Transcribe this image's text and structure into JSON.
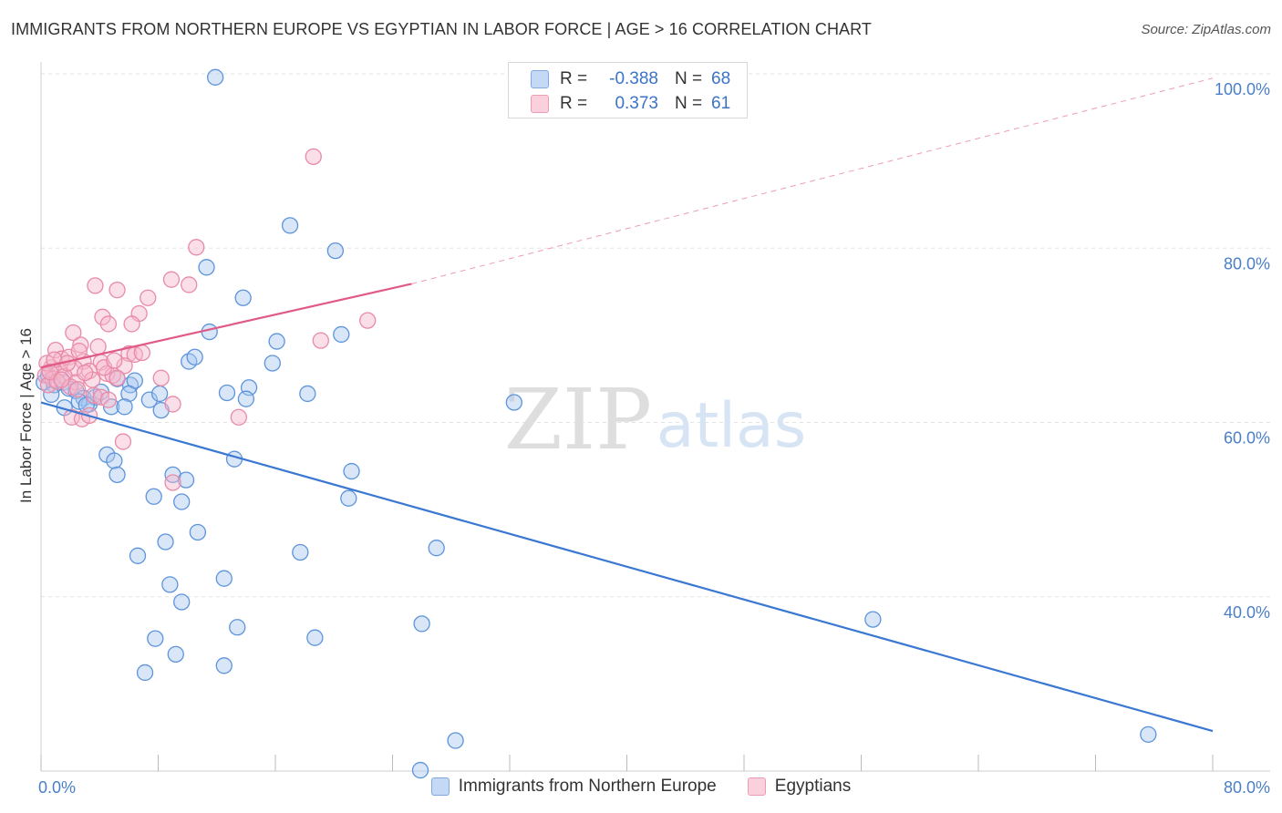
{
  "title": "IMMIGRANTS FROM NORTHERN EUROPE VS EGYPTIAN IN LABOR FORCE | AGE > 16 CORRELATION CHART",
  "source": "Source: ZipAtlas.com",
  "watermark": {
    "zip": "ZIP",
    "atlas": "atlas"
  },
  "stats": [
    {
      "r_label": "R =",
      "r_value": "-0.388",
      "n_label": "N =",
      "n_value": "68",
      "color": "#9cc0ee"
    },
    {
      "r_label": "R =",
      "r_value": "0.373",
      "n_label": "N =",
      "n_value": "61",
      "color": "#f5a8c0"
    }
  ],
  "colors": {
    "blue_fill": "#a9c8f0",
    "blue_stroke": "#5d94dc",
    "blue_line": "#3a78d2",
    "pink_fill": "#f7b8cc",
    "pink_stroke": "#e88aa8",
    "pink_line": "#e05a85",
    "grid": "#e3e3e3",
    "tick_text": "#4a7fc8"
  },
  "chart_data": {
    "type": "scatter",
    "title": "IMMIGRANTS FROM NORTHERN EUROPE VS EGYPTIAN IN LABOR FORCE | AGE > 16 CORRELATION CHART",
    "xlabel": "",
    "ylabel": "In Labor Force | Age > 16",
    "xlim": [
      0,
      80
    ],
    "ylim": [
      20,
      100
    ],
    "x_tick_labels": [
      {
        "value": 0,
        "label": "0.0%"
      },
      {
        "value": 80,
        "label": "80.0%"
      }
    ],
    "y_tick_labels": [
      {
        "value": 40,
        "label": "40.0%"
      },
      {
        "value": 60,
        "label": "60.0%"
      },
      {
        "value": 80,
        "label": "80.0%"
      },
      {
        "value": 100,
        "label": "100.0%"
      }
    ],
    "grid": true,
    "legend": "bottom-center",
    "series": [
      {
        "name": "Immigrants from Northern Europe",
        "color": "#a9c8f0",
        "trend": {
          "x0": 0,
          "y0": 62.3,
          "x1": 80,
          "y1": 24.6
        },
        "points": [
          [
            11.9,
            99.6
          ],
          [
            17.0,
            82.6
          ],
          [
            20.1,
            79.7
          ],
          [
            11.3,
            77.8
          ],
          [
            13.8,
            74.3
          ],
          [
            11.5,
            70.4
          ],
          [
            20.5,
            70.1
          ],
          [
            16.1,
            69.3
          ],
          [
            15.8,
            66.8
          ],
          [
            10.1,
            67.0
          ],
          [
            10.5,
            67.5
          ],
          [
            0.2,
            64.6
          ],
          [
            0.5,
            65.4
          ],
          [
            0.9,
            64.3
          ],
          [
            1.5,
            64.6
          ],
          [
            1.9,
            63.9
          ],
          [
            2.4,
            63.6
          ],
          [
            2.9,
            62.8
          ],
          [
            3.3,
            62.1
          ],
          [
            3.7,
            62.9
          ],
          [
            4.1,
            63.5
          ],
          [
            4.8,
            61.8
          ],
          [
            5.2,
            65.0
          ],
          [
            6.1,
            64.3
          ],
          [
            6.4,
            64.8
          ],
          [
            6.0,
            63.3
          ],
          [
            7.4,
            62.6
          ],
          [
            8.1,
            63.3
          ],
          [
            8.2,
            61.4
          ],
          [
            12.7,
            63.4
          ],
          [
            14.2,
            64.0
          ],
          [
            14.0,
            62.7
          ],
          [
            18.2,
            63.3
          ],
          [
            1.6,
            61.7
          ],
          [
            2.6,
            62.4
          ],
          [
            4.5,
            56.3
          ],
          [
            5.0,
            55.6
          ],
          [
            5.2,
            54.0
          ],
          [
            13.2,
            55.8
          ],
          [
            21.2,
            54.4
          ],
          [
            7.7,
            51.5
          ],
          [
            9.0,
            54.0
          ],
          [
            9.9,
            53.4
          ],
          [
            9.6,
            50.9
          ],
          [
            21.0,
            51.3
          ],
          [
            6.6,
            44.7
          ],
          [
            8.5,
            46.3
          ],
          [
            10.7,
            47.4
          ],
          [
            17.7,
            45.1
          ],
          [
            27.0,
            45.6
          ],
          [
            8.8,
            41.4
          ],
          [
            9.6,
            39.4
          ],
          [
            12.5,
            42.1
          ],
          [
            7.8,
            35.2
          ],
          [
            9.2,
            33.4
          ],
          [
            13.4,
            36.5
          ],
          [
            18.7,
            35.3
          ],
          [
            26.0,
            36.9
          ],
          [
            7.1,
            31.3
          ],
          [
            12.5,
            32.1
          ],
          [
            28.3,
            23.5
          ],
          [
            25.9,
            20.1
          ],
          [
            32.3,
            62.3
          ],
          [
            56.8,
            37.4
          ],
          [
            75.6,
            24.2
          ],
          [
            0.7,
            63.2
          ],
          [
            3.1,
            62.0
          ],
          [
            5.7,
            61.8
          ]
        ]
      },
      {
        "name": "Egyptians",
        "color": "#f7b8cc",
        "trend": {
          "x0": 0,
          "y0": 66.3,
          "x1": 25.3,
          "y1": 75.9,
          "extended_x1": 80,
          "extended_y1": 99.5
        },
        "points": [
          [
            18.6,
            90.5
          ],
          [
            10.6,
            80.1
          ],
          [
            8.9,
            76.4
          ],
          [
            10.1,
            75.8
          ],
          [
            3.7,
            75.7
          ],
          [
            5.2,
            75.2
          ],
          [
            7.3,
            74.3
          ],
          [
            6.7,
            72.5
          ],
          [
            4.2,
            72.1
          ],
          [
            4.6,
            71.3
          ],
          [
            6.2,
            71.3
          ],
          [
            22.3,
            71.7
          ],
          [
            2.2,
            70.3
          ],
          [
            19.1,
            69.4
          ],
          [
            2.7,
            68.9
          ],
          [
            1.0,
            68.3
          ],
          [
            3.9,
            68.7
          ],
          [
            6.0,
            67.9
          ],
          [
            6.4,
            67.8
          ],
          [
            1.4,
            67.3
          ],
          [
            1.9,
            67.5
          ],
          [
            2.9,
            67.0
          ],
          [
            4.1,
            66.9
          ],
          [
            0.7,
            66.3
          ],
          [
            1.2,
            66.0
          ],
          [
            2.3,
            66.2
          ],
          [
            3.3,
            65.9
          ],
          [
            5.7,
            66.5
          ],
          [
            0.3,
            65.4
          ],
          [
            0.8,
            65.0
          ],
          [
            1.6,
            65.3
          ],
          [
            2.4,
            64.6
          ],
          [
            3.5,
            64.9
          ],
          [
            4.5,
            65.6
          ],
          [
            4.9,
            65.4
          ],
          [
            5.2,
            65.1
          ],
          [
            8.2,
            65.1
          ],
          [
            0.5,
            64.3
          ],
          [
            1.1,
            64.7
          ],
          [
            2.0,
            64.1
          ],
          [
            3.6,
            63.1
          ],
          [
            4.1,
            62.9
          ],
          [
            4.6,
            62.6
          ],
          [
            9.0,
            62.1
          ],
          [
            2.1,
            60.6
          ],
          [
            2.8,
            60.4
          ],
          [
            3.3,
            60.8
          ],
          [
            13.5,
            60.6
          ],
          [
            5.6,
            57.8
          ],
          [
            9.0,
            53.1
          ],
          [
            0.4,
            66.8
          ],
          [
            0.9,
            67.2
          ],
          [
            1.8,
            66.8
          ],
          [
            2.6,
            68.2
          ],
          [
            3.0,
            65.7
          ],
          [
            4.3,
            66.3
          ],
          [
            5.0,
            67.1
          ],
          [
            6.9,
            68.0
          ],
          [
            0.6,
            65.8
          ],
          [
            1.4,
            64.9
          ],
          [
            2.5,
            63.8
          ]
        ]
      }
    ]
  }
}
